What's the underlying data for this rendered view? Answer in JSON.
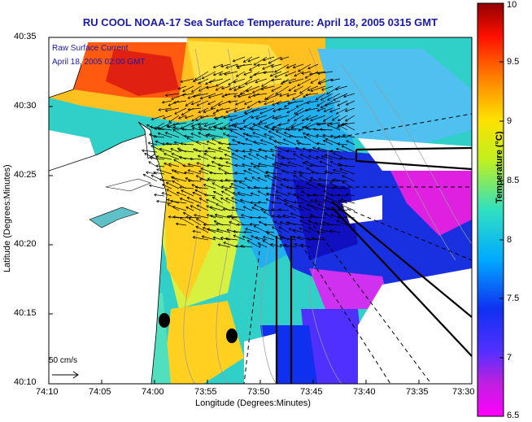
{
  "title": "RU COOL  NOAA-17  Sea Surface Temperature:  April 18, 2005 0315 GMT",
  "legend": {
    "line1": "Raw Surface Current",
    "line2": "April 18, 2005 02:00 GMT"
  },
  "scale": {
    "label": "50 cm/s"
  },
  "axes": {
    "xlabel": "Longitude (Degrees:Minutes)",
    "ylabel": "Latitude (Degrees:Minutes)",
    "xticks": [
      "74:10",
      "74:05",
      "74:00",
      "73:55",
      "73:50",
      "73:45",
      "73:40",
      "73:35",
      "73:30"
    ],
    "yticks": [
      "40:35",
      "40:30",
      "40:25",
      "40:20",
      "40:15",
      "40:10"
    ]
  },
  "colorbar": {
    "title": "Temperature (°C)",
    "ticks": [
      "10",
      "9.5",
      "9",
      "8.5",
      "8",
      "7.5",
      "7",
      "6.5"
    ],
    "min": 6.5,
    "max": 10
  },
  "colors": {
    "title": "#1a1aa8",
    "land": "#ffffff",
    "ocean_default": "#2a62d8"
  }
}
